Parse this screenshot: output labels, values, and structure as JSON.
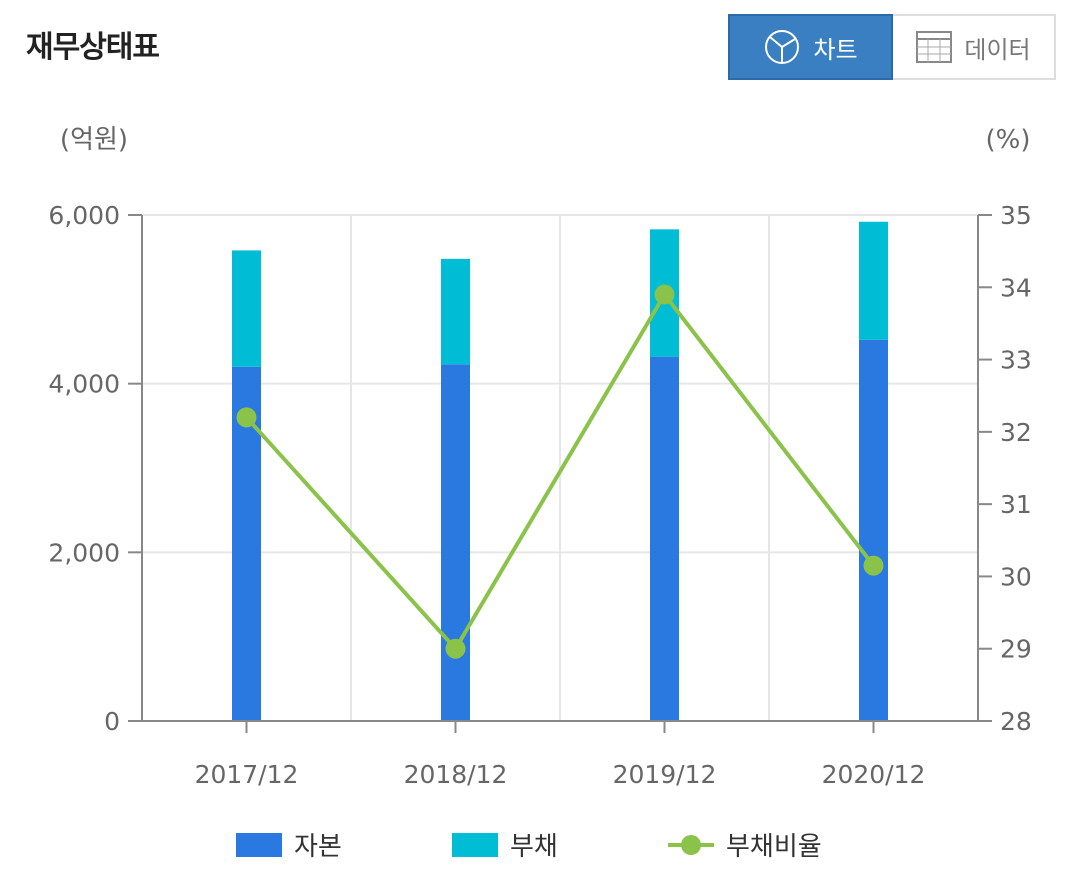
{
  "header": {
    "title": "재무상태표",
    "view_toggle": {
      "chart_label": "차트",
      "data_label": "데이터",
      "active": "chart"
    }
  },
  "colors": {
    "capital": "#2979e0",
    "liability": "#00bcd4",
    "ratio": "#8bc34a",
    "toggle_active": "#3a7fc1"
  },
  "chart_data": {
    "type": "bar",
    "stacked": true,
    "categories": [
      "2017/12",
      "2018/12",
      "2019/12",
      "2020/12"
    ],
    "series": [
      {
        "name": "자본",
        "type": "bar",
        "axis": "left",
        "values": [
          4200,
          4230,
          4320,
          4520
        ]
      },
      {
        "name": "부채",
        "type": "bar",
        "axis": "left",
        "values": [
          1380,
          1250,
          1510,
          1400
        ]
      },
      {
        "name": "부채비율",
        "type": "line",
        "axis": "right",
        "values": [
          32.2,
          29.0,
          33.9,
          30.15
        ]
      }
    ],
    "left_axis": {
      "unit_label": "(억원)",
      "ylim": [
        0,
        6000
      ],
      "ticks": [
        0,
        2000,
        4000,
        6000
      ],
      "tick_labels": [
        "0",
        "2,000",
        "4,000",
        "6,000"
      ]
    },
    "right_axis": {
      "unit_label": "(%)",
      "ylim": [
        28,
        35
      ],
      "ticks": [
        28,
        29,
        30,
        31,
        32,
        33,
        34,
        35
      ],
      "tick_labels": [
        "28",
        "29",
        "30",
        "31",
        "32",
        "33",
        "34",
        "35"
      ]
    },
    "grid": true,
    "legend_placement": "bottom"
  },
  "legend": {
    "items": [
      {
        "label": "자본"
      },
      {
        "label": "부채"
      },
      {
        "label": "부채비율"
      }
    ]
  }
}
